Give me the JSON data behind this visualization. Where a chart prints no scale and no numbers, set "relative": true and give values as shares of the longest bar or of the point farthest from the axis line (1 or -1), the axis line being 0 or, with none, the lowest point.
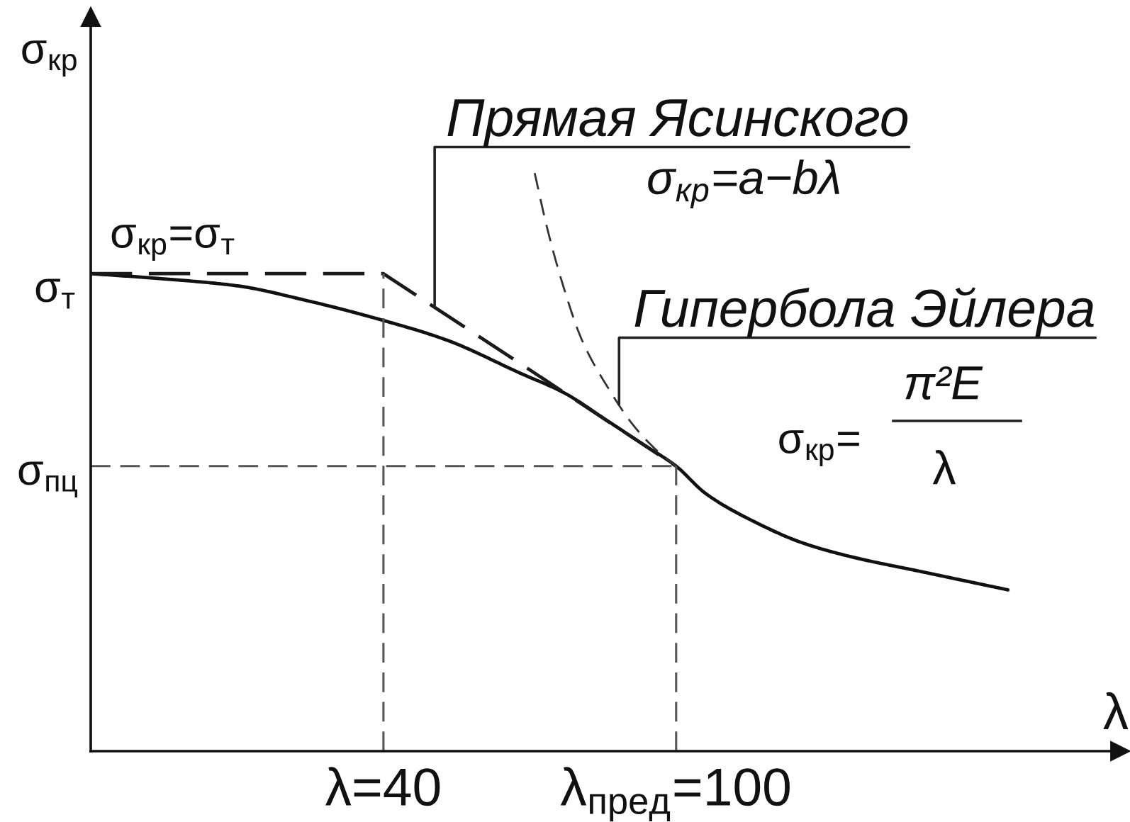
{
  "chart_data": {
    "type": "line",
    "relative": true,
    "xlabel": "λ",
    "ylabel": "σ$_{кр}$",
    "xlim": [
      -20,
      191
    ],
    "xticks": [
      {
        "value": 40,
        "label": "λ=40"
      },
      {
        "value": 100,
        "label": "λ$_{пред}$=100"
      }
    ],
    "tick_labels": "x",
    "grid": false,
    "series": [
      {
        "color": "#111111",
        "line_style": "solid",
        "x": [
          -20,
          -5,
          10,
          24,
          40,
          53,
          68,
          77,
          86,
          93,
          100,
          106,
          116,
          126,
          136,
          150,
          168
        ],
        "values": [
          0.826,
          0.817,
          0.805,
          0.78,
          0.745,
          0.711,
          0.654,
          0.62,
          0.571,
          0.532,
          0.493,
          0.446,
          0.397,
          0.36,
          0.336,
          0.311,
          0.279
        ]
      },
      {
        "color": "#1a1a1a",
        "line_style": "dashed",
        "x": [
          -20,
          40,
          100
        ],
        "values": [
          0.826,
          0.826,
          0.493
        ]
      },
      {
        "color": "#333333",
        "line_style": "dashed",
        "x": [
          71,
          73.5,
          76.7,
          80.7,
          86.3,
          91.2,
          95.8,
          100
        ],
        "values": [
          1,
          0.907,
          0.809,
          0.711,
          0.625,
          0.564,
          0.522,
          0.493
        ]
      },
      {
        "color": "#555555",
        "line_style": "dashed",
        "x": [
          40,
          40
        ],
        "values": [
          0,
          0.826
        ]
      },
      {
        "color": "#555555",
        "line_style": "dashed",
        "x": [
          100,
          100
        ],
        "values": [
          0,
          0.493
        ]
      },
      {
        "color": "#555555",
        "line_style": "dashed",
        "x": [
          -20,
          100
        ],
        "values": [
          0.493,
          0.493
        ]
      }
    ],
    "annotations": [
      "σ$_{кр}$=σ$_{т}$",
      {
        "text": "Прямая Ясинского",
        "x": 50.5,
        "y": 0.768
      },
      "σ$_{кр}$=a−bλ",
      {
        "text": "Гипербола Эйлера",
        "x": 88.3,
        "y": 0.6
      },
      "σ$_{кр}$=",
      "π²E",
      "λ",
      {
        "text": "σ$_{т}$",
        "x": -20,
        "y": 0.826
      },
      {
        "text": "σ$_{пц}$",
        "x": -20,
        "y": 0.493
      }
    ]
  }
}
